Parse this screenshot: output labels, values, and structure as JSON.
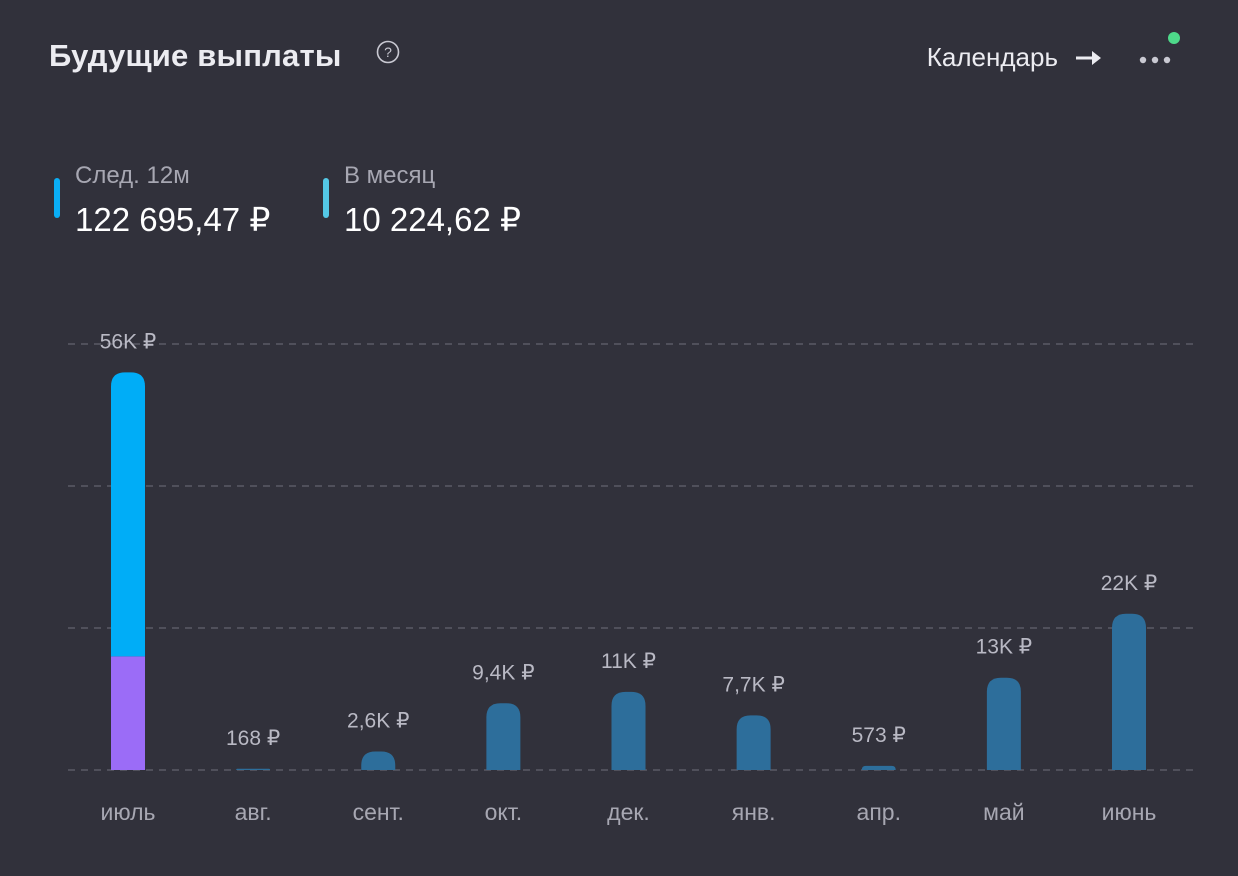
{
  "header": {
    "title": "Будущие выплаты",
    "help_icon": "question-circle-icon",
    "calendar_label": "Календарь",
    "calendar_icon": "arrow-right-icon",
    "more_icon": "more-dots-icon",
    "notification_color": "#4ed98a"
  },
  "stats": [
    {
      "label": "След. 12м",
      "value": "122 695,47 ₽",
      "color": "#0aaef5"
    },
    {
      "label": "В месяц",
      "value": "10 224,62 ₽",
      "color": "#54c8e6"
    }
  ],
  "chart_data": {
    "type": "bar",
    "categories": [
      "июль",
      "авг.",
      "сент.",
      "окт.",
      "дек.",
      "янв.",
      "апр.",
      "май",
      "июнь"
    ],
    "data_labels": [
      "56K ₽",
      "168 ₽",
      "2,6K ₽",
      "9,4K ₽",
      "11K ₽",
      "7,7K ₽",
      "573 ₽",
      "13K ₽",
      "22K ₽"
    ],
    "series": [
      {
        "values": [
          40000,
          168,
          2600,
          9400,
          11000,
          7700,
          573,
          13000,
          22000
        ],
        "color_first": "#00adf7",
        "color": "#2d6e9b"
      },
      {
        "values": [
          16000,
          0,
          0,
          0,
          0,
          0,
          0,
          0,
          0
        ],
        "color": "#9b6cf7"
      }
    ],
    "ylim": [
      0,
      60000
    ],
    "grid": true,
    "gridlines": [
      0,
      20000,
      40000,
      60000
    ]
  }
}
